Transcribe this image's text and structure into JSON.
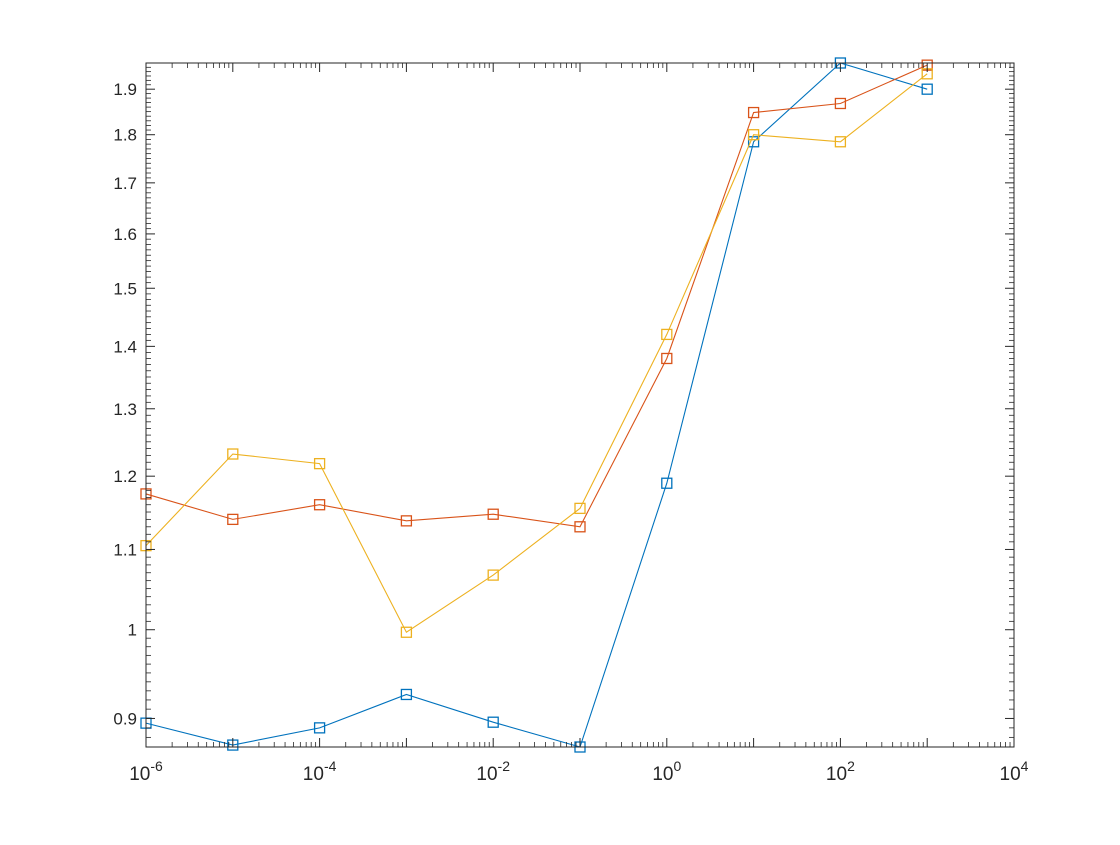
{
  "chart_data": {
    "type": "line",
    "title": "",
    "xlabel": "",
    "ylabel": "",
    "xscale": "log",
    "yscale": "log",
    "xlim": [
      1e-06,
      10000.0
    ],
    "ylim": [
      0.87,
      1.96
    ],
    "grid": false,
    "legend": "none",
    "box": true,
    "marker": "square",
    "x": [
      1e-06,
      1e-05,
      0.0001,
      0.001,
      0.01,
      0.1,
      1,
      10,
      100,
      1000
    ],
    "x_ticks": [
      {
        "value": 1e-06,
        "base": "10",
        "exp": "-6"
      },
      {
        "value": 0.0001,
        "base": "10",
        "exp": "-4"
      },
      {
        "value": 0.01,
        "base": "10",
        "exp": "-2"
      },
      {
        "value": 1,
        "base": "10",
        "exp": "0"
      },
      {
        "value": 100,
        "base": "10",
        "exp": "2"
      },
      {
        "value": 10000,
        "base": "10",
        "exp": "4"
      }
    ],
    "y_ticks": [
      {
        "value": 0.9,
        "label": "0.9"
      },
      {
        "value": 1.0,
        "label": "1"
      },
      {
        "value": 1.1,
        "label": "1.1"
      },
      {
        "value": 1.2,
        "label": "1.2"
      },
      {
        "value": 1.3,
        "label": "1.3"
      },
      {
        "value": 1.4,
        "label": "1.4"
      },
      {
        "value": 1.5,
        "label": "1.5"
      },
      {
        "value": 1.6,
        "label": "1.6"
      },
      {
        "value": 1.7,
        "label": "1.7"
      },
      {
        "value": 1.8,
        "label": "1.8"
      },
      {
        "value": 1.9,
        "label": "1.9"
      }
    ],
    "series": [
      {
        "color": "#0072BD",
        "values": [
          0.895,
          0.872,
          0.89,
          0.926,
          0.896,
          0.87,
          1.19,
          1.785,
          1.96,
          1.9
        ]
      },
      {
        "color": "#D95319",
        "values": [
          1.175,
          1.14,
          1.16,
          1.138,
          1.147,
          1.13,
          1.38,
          1.848,
          1.868,
          1.955
        ]
      },
      {
        "color": "#EDB120",
        "values": [
          1.105,
          1.232,
          1.218,
          0.997,
          1.067,
          1.155,
          1.42,
          1.8,
          1.785,
          1.935
        ]
      }
    ]
  }
}
